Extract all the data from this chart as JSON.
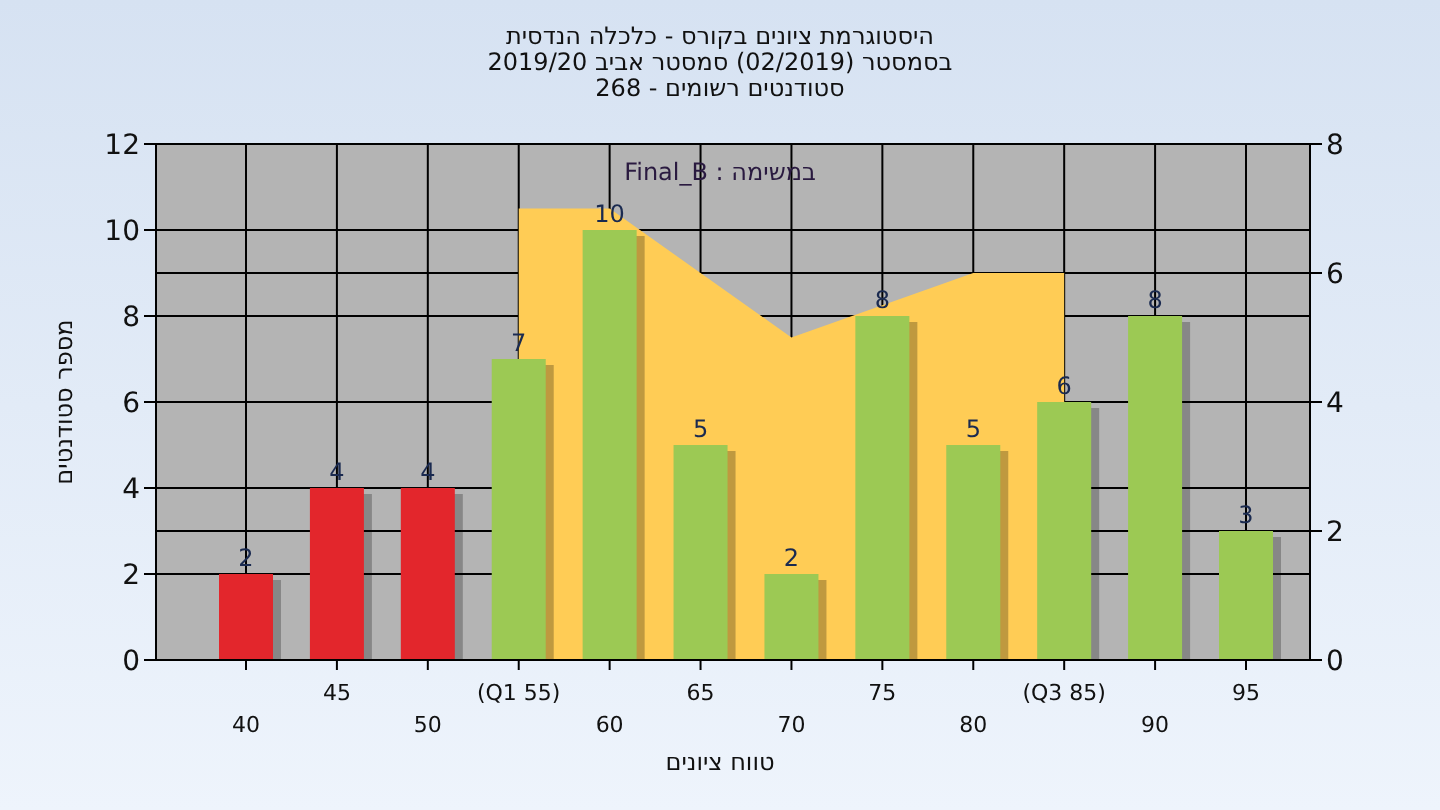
{
  "chart_data": {
    "type": "bar",
    "title": "היסטוגרמת ציונים בקורס - כלכלה הנדסית",
    "subtitle": "בסמסטר  (02/2019)  סמסטר אביב 2019/20\nסטודנטים רשומים - 268",
    "xlabel": "טווח ציונים",
    "ylabel": "מספר סטודנטים",
    "annotations": [
      "במשימה : Final_B"
    ],
    "categories": [
      "40",
      "45",
      "50",
      "(Q1 55)",
      "60",
      "65",
      "70",
      "75",
      "80",
      "(Q3 85)",
      "90",
      "95"
    ],
    "series": [
      {
        "colors": [
          "#e3262c",
          "#e3262c",
          "#e3262c",
          "#9cc954",
          "#9cc954",
          "#9cc954",
          "#9cc954",
          "#9cc954",
          "#9cc954",
          "#9cc954",
          "#9cc954",
          "#9cc954"
        ],
        "values": [
          2,
          4,
          4,
          7,
          10,
          5,
          2,
          8,
          5,
          6,
          8,
          3
        ],
        "value_labels": [
          "2",
          "4",
          "4",
          "7",
          "10",
          "5",
          "2",
          "8",
          "5",
          "6",
          "8",
          "3"
        ]
      },
      {
        "type": "area",
        "axis": "y2",
        "color": "#ffcc55",
        "values": [
          null,
          null,
          null,
          7,
          7,
          6,
          5,
          null,
          6,
          6,
          null,
          null
        ]
      }
    ],
    "ylim": [
      0,
      12
    ],
    "yticks": [
      0,
      2,
      4,
      6,
      8,
      10,
      12
    ],
    "y2lim": [
      0,
      8
    ],
    "y2ticks": [
      0,
      2,
      4,
      6,
      8
    ],
    "grid": true
  }
}
